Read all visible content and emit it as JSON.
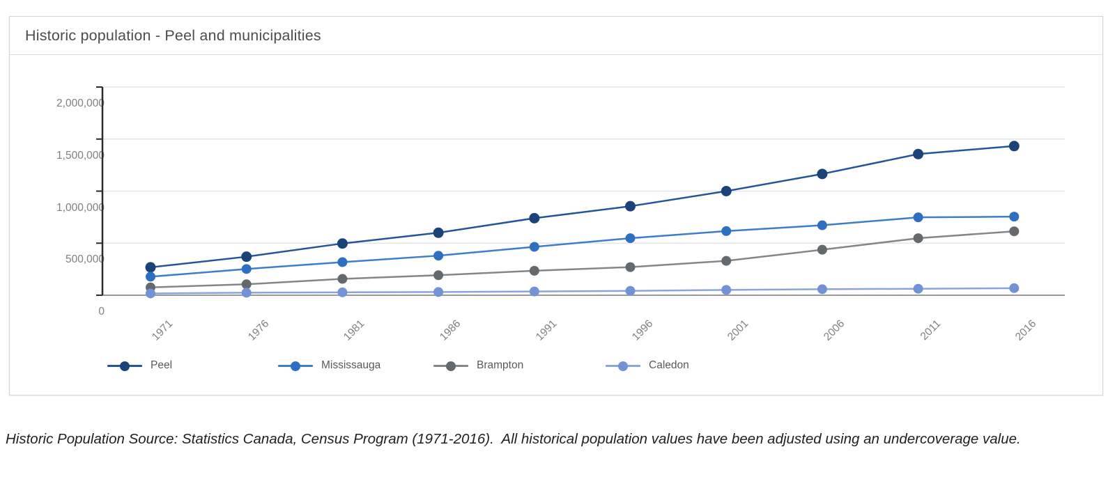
{
  "chart_data": {
    "type": "line",
    "title": "Historic population - Peel and municipalities",
    "xlabel": "",
    "ylabel": "",
    "categories": [
      "1971",
      "1976",
      "1981",
      "1986",
      "1991",
      "1996",
      "2001",
      "2006",
      "2011",
      "2016"
    ],
    "series": [
      {
        "name": "Peel",
        "line_color": "#24549b",
        "marker_color": "#1c4377",
        "values": [
          268000,
          370000,
          497000,
          600000,
          740000,
          855000,
          1000000,
          1165000,
          1356000,
          1433000
        ]
      },
      {
        "name": "Mississauga",
        "line_color": "#3e7dc8",
        "marker_color": "#2e6fbf",
        "values": [
          178000,
          252000,
          318000,
          380000,
          465000,
          548000,
          616000,
          672000,
          748000,
          755000
        ]
      },
      {
        "name": "Brampton",
        "line_color": "#83878c",
        "marker_color": "#64696e",
        "values": [
          75000,
          105000,
          157000,
          192000,
          235000,
          270000,
          330000,
          437000,
          548000,
          614000
        ]
      },
      {
        "name": "Caledon",
        "line_color": "#8aa5dc",
        "marker_color": "#7193d6",
        "values": [
          17000,
          24000,
          28000,
          31000,
          36000,
          42000,
          51000,
          58000,
          62000,
          68000
        ]
      }
    ],
    "y_axis": {
      "min": 0,
      "max": 2000000,
      "ticks": [
        {
          "value": 0,
          "label": "0"
        },
        {
          "value": 500000,
          "label": "500,000"
        },
        {
          "value": 1000000,
          "label": "1,000,000"
        },
        {
          "value": 1500000,
          "label": "1,500,000"
        },
        {
          "value": 2000000,
          "label": "2,000,000"
        }
      ]
    },
    "grid": true,
    "legend_position": "bottom"
  },
  "footer": {
    "note": "Historic Population Source: Statistics Canada, Census Program (1971-2016).  All historical population values have been adjusted using an undercoverage value."
  }
}
